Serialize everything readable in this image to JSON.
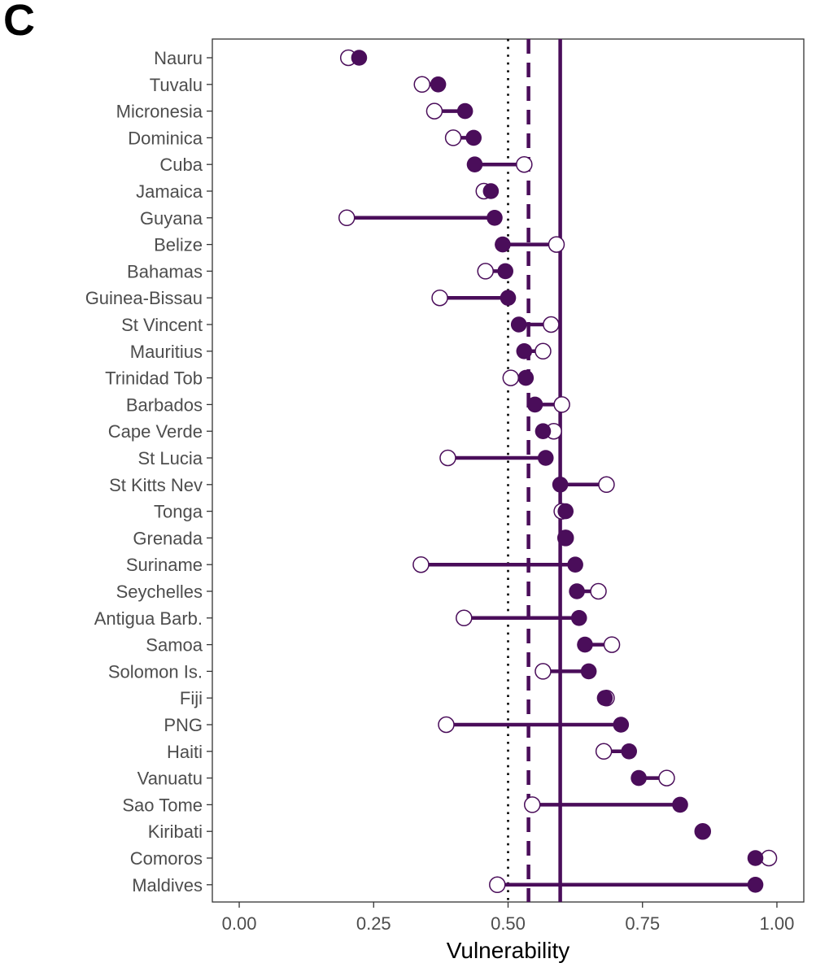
{
  "panel_label": "C",
  "chart_data": {
    "type": "dumbbell",
    "xlabel": "Vulnerability",
    "xlim": [
      -0.05,
      1.05
    ],
    "xticks": [
      0.0,
      0.25,
      0.5,
      0.75,
      1.0
    ],
    "xtick_labels": [
      "0.00",
      "0.25",
      "0.50",
      "0.75",
      "1.00"
    ],
    "colors": {
      "filled": "#4a0d5a",
      "open_stroke": "#4a0d5a",
      "open_fill": "#ffffff",
      "line": "#4a0d5a"
    },
    "reference_lines": [
      {
        "name": "dotted",
        "value": 0.5,
        "style": "dotted"
      },
      {
        "name": "dashed",
        "value": 0.538,
        "style": "dashed"
      },
      {
        "name": "solid",
        "value": 0.597,
        "style": "solid"
      }
    ],
    "series": [
      {
        "name": "filled",
        "marker": "filled-circle"
      },
      {
        "name": "open",
        "marker": "open-circle"
      }
    ],
    "rows": [
      {
        "country": "Nauru",
        "filled": 0.223,
        "open": 0.203
      },
      {
        "country": "Tuvalu",
        "filled": 0.37,
        "open": 0.34
      },
      {
        "country": "Micronesia",
        "filled": 0.42,
        "open": 0.363
      },
      {
        "country": "Dominica",
        "filled": 0.436,
        "open": 0.398
      },
      {
        "country": "Cuba",
        "filled": 0.438,
        "open": 0.53
      },
      {
        "country": "Jamaica",
        "filled": 0.468,
        "open": 0.455
      },
      {
        "country": "Guyana",
        "filled": 0.475,
        "open": 0.2
      },
      {
        "country": "Belize",
        "filled": 0.49,
        "open": 0.59
      },
      {
        "country": "Bahamas",
        "filled": 0.495,
        "open": 0.458
      },
      {
        "country": "Guinea-Bissau",
        "filled": 0.5,
        "open": 0.373
      },
      {
        "country": "St Vincent",
        "filled": 0.52,
        "open": 0.58
      },
      {
        "country": "Mauritius",
        "filled": 0.53,
        "open": 0.565
      },
      {
        "country": "Trinidad Tob",
        "filled": 0.533,
        "open": 0.505
      },
      {
        "country": "Barbados",
        "filled": 0.55,
        "open": 0.6
      },
      {
        "country": "Cape Verde",
        "filled": 0.565,
        "open": 0.585
      },
      {
        "country": "St Lucia",
        "filled": 0.57,
        "open": 0.388
      },
      {
        "country": "St Kitts Nev",
        "filled": 0.597,
        "open": 0.683
      },
      {
        "country": "Tonga",
        "filled": 0.607,
        "open": 0.6
      },
      {
        "country": "Grenada",
        "filled": 0.607,
        "open": 0.607
      },
      {
        "country": "Suriname",
        "filled": 0.625,
        "open": 0.338
      },
      {
        "country": "Seychelles",
        "filled": 0.628,
        "open": 0.668
      },
      {
        "country": "Antigua Barb.",
        "filled": 0.632,
        "open": 0.418
      },
      {
        "country": "Samoa",
        "filled": 0.643,
        "open": 0.693
      },
      {
        "country": "Solomon Is.",
        "filled": 0.65,
        "open": 0.565
      },
      {
        "country": "Fiji",
        "filled": 0.68,
        "open": 0.683
      },
      {
        "country": "PNG",
        "filled": 0.71,
        "open": 0.385
      },
      {
        "country": "Haiti",
        "filled": 0.725,
        "open": 0.678
      },
      {
        "country": "Vanuatu",
        "filled": 0.743,
        "open": 0.795
      },
      {
        "country": "Sao Tome",
        "filled": 0.82,
        "open": 0.545
      },
      {
        "country": "Kiribati",
        "filled": 0.862,
        "open": 0.862
      },
      {
        "country": "Comoros",
        "filled": 0.96,
        "open": 0.985
      },
      {
        "country": "Maldives",
        "filled": 0.96,
        "open": 0.48
      }
    ]
  }
}
